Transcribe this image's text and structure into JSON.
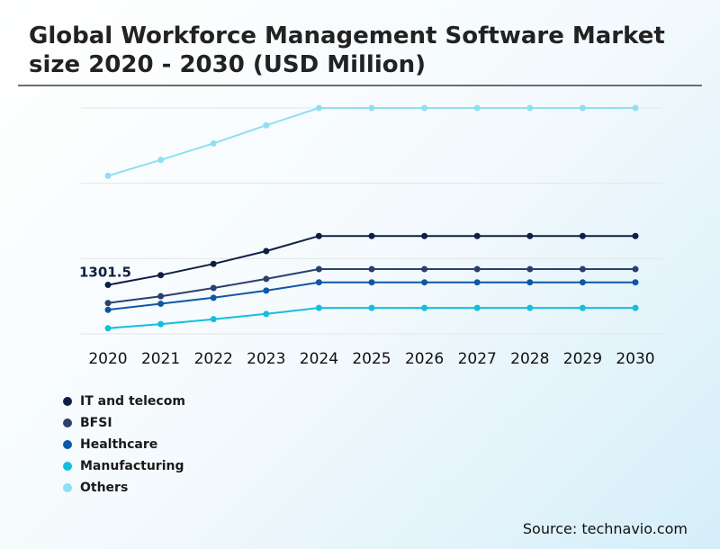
{
  "title": "Global Workforce Management Software Market size 2020 - 2030 (USD Million)",
  "source": "Source: technavio.com",
  "chart_data": {
    "type": "line",
    "title": "Global Workforce Management Software Market size 2020 - 2030 (USD Million)",
    "xlabel": "",
    "ylabel": "",
    "grid": true,
    "legend_position": "bottom-left",
    "ylim": [
      0,
      6000
    ],
    "categories": [
      "2020",
      "2021",
      "2022",
      "2023",
      "2024",
      "2025",
      "2026",
      "2027",
      "2028",
      "2029",
      "2030"
    ],
    "annotations": [
      {
        "series": "IT and telecom",
        "category": "2020",
        "text": "1301.5"
      }
    ],
    "series": [
      {
        "name": "IT and telecom",
        "color": "#0d1f45",
        "values": [
          1301.5,
          1560,
          1860,
          2200,
          2600,
          2600,
          2600,
          2600,
          2600,
          2600,
          2600
        ]
      },
      {
        "name": "BFSI",
        "color": "#2b3f6e",
        "values": [
          820,
          1000,
          1220,
          1460,
          1720,
          1720,
          1720,
          1720,
          1720,
          1720,
          1720
        ]
      },
      {
        "name": "Healthcare",
        "color": "#0e57a6",
        "values": [
          640,
          800,
          960,
          1150,
          1370,
          1370,
          1370,
          1370,
          1370,
          1370,
          1370
        ]
      },
      {
        "name": "Manufacturing",
        "color": "#13bfde",
        "values": [
          150,
          260,
          390,
          530,
          690,
          690,
          690,
          690,
          690,
          690,
          690
        ]
      },
      {
        "name": "Others",
        "color": "#8fdff2",
        "values": [
          4200,
          4620,
          5060,
          5540,
          6000,
          6000,
          6000,
          6000,
          6000,
          6000,
          6000
        ]
      }
    ]
  },
  "legend": [
    {
      "label": "IT and telecom",
      "color": "#0d1f45"
    },
    {
      "label": "BFSI",
      "color": "#2b3f6e"
    },
    {
      "label": "Healthcare",
      "color": "#0e57a6"
    },
    {
      "label": "Manufacturing",
      "color": "#13bfde"
    },
    {
      "label": "Others",
      "color": "#8fdff2"
    }
  ]
}
